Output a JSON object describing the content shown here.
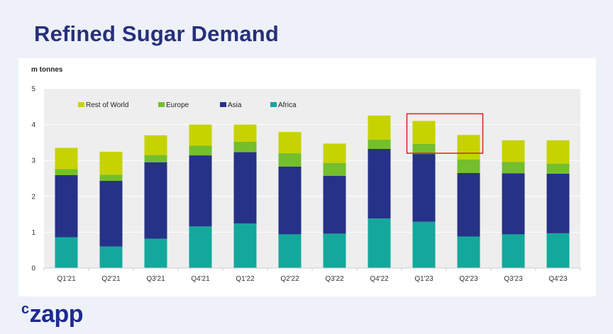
{
  "page": {
    "title": "Refined Sugar Demand",
    "logo_text": "czapp"
  },
  "colors": {
    "background": "#eef1f8",
    "title": "#26307a",
    "plot_bg": "#eeeeee",
    "highlight_box": "#e0201c"
  },
  "chart_data": {
    "type": "bar",
    "stacked": true,
    "title": "Refined Sugar Demand",
    "ylabel": "m tonnes",
    "xlabel": "",
    "ylim": [
      0,
      5
    ],
    "yticks": [
      0,
      1,
      2,
      3,
      4,
      5
    ],
    "grid": true,
    "legend_position": "top-left",
    "categories": [
      "Q1'21",
      "Q2'21",
      "Q3'21",
      "Q4'21",
      "Q1'22",
      "Q2'22",
      "Q3'22",
      "Q4'22",
      "Q1'23",
      "Q2'23",
      "Q3'23",
      "Q4'23"
    ],
    "series": [
      {
        "name": "Africa",
        "color": "#14a89c",
        "values": [
          0.86,
          0.6,
          0.82,
          1.16,
          1.24,
          0.94,
          0.96,
          1.38,
          1.29,
          0.88,
          0.94,
          0.97
        ]
      },
      {
        "name": "Asia",
        "color": "#263287",
        "values": [
          1.73,
          1.83,
          2.13,
          1.98,
          1.99,
          1.89,
          1.61,
          1.94,
          1.89,
          1.77,
          1.7,
          1.66
        ]
      },
      {
        "name": "Europe",
        "color": "#74bf2c",
        "values": [
          0.17,
          0.17,
          0.2,
          0.27,
          0.29,
          0.37,
          0.36,
          0.26,
          0.28,
          0.38,
          0.32,
          0.28
        ]
      },
      {
        "name": "Rest of World",
        "color": "#c6d300",
        "values": [
          0.59,
          0.64,
          0.55,
          0.59,
          0.48,
          0.59,
          0.54,
          0.67,
          0.64,
          0.68,
          0.6,
          0.65
        ]
      }
    ],
    "legend_order": [
      "Rest of World",
      "Europe",
      "Asia",
      "Africa"
    ],
    "annotations": [
      {
        "type": "highlight-box",
        "category": "Q1'23",
        "to_category": "Q2'23",
        "y_from": 3.2,
        "y_to": 4.3,
        "color": "#e0201c"
      }
    ]
  }
}
